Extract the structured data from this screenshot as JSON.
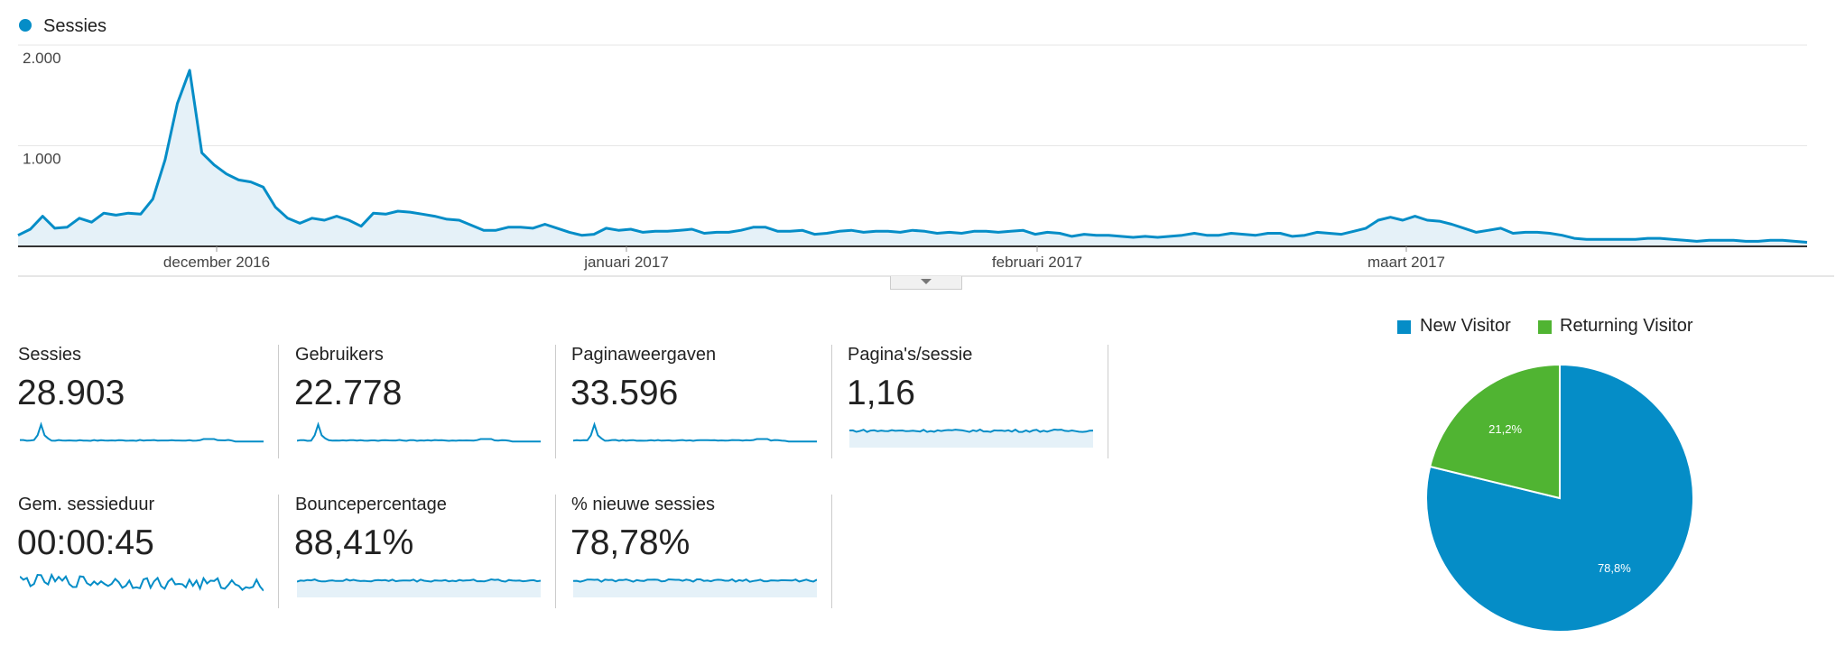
{
  "legend": {
    "series_label": "Sessies",
    "series_color": "#058dc7"
  },
  "chart_data": [
    {
      "type": "area",
      "series": [
        {
          "name": "Sessies",
          "color": "#058dc7",
          "values": [
            110,
            170,
            300,
            180,
            190,
            280,
            240,
            330,
            310,
            330,
            320,
            470,
            860,
            1420,
            1750,
            930,
            810,
            720,
            660,
            640,
            590,
            390,
            280,
            230,
            280,
            260,
            300,
            260,
            200,
            330,
            320,
            350,
            340,
            320,
            300,
            270,
            260,
            210,
            160,
            160,
            190,
            190,
            180,
            220,
            180,
            140,
            110,
            120,
            180,
            160,
            170,
            140,
            150,
            150,
            160,
            170,
            130,
            140,
            140,
            160,
            190,
            190,
            150,
            150,
            160,
            120,
            130,
            150,
            160,
            140,
            150,
            150,
            140,
            160,
            150,
            130,
            140,
            130,
            150,
            150,
            140,
            150,
            160,
            120,
            140,
            130,
            100,
            120,
            110,
            110,
            100,
            90,
            100,
            90,
            100,
            110,
            130,
            110,
            110,
            130,
            120,
            110,
            130,
            130,
            100,
            110,
            140,
            130,
            120,
            150,
            180,
            260,
            290,
            260,
            300,
            260,
            250,
            220,
            180,
            140,
            160,
            180,
            130,
            140,
            140,
            130,
            110,
            80,
            70,
            70,
            70,
            70,
            70,
            80,
            80,
            70,
            60,
            50,
            60,
            60,
            60,
            50,
            50,
            60,
            60,
            50,
            40
          ]
        }
      ],
      "x_labels": [
        "december 2016",
        "januari 2017",
        "februari 2017",
        "maart 2017"
      ],
      "y_ticks": [
        "2.000",
        "1.000"
      ],
      "ylim": [
        0,
        2000
      ],
      "grid": true
    },
    {
      "type": "pie",
      "labels": [
        "New Visitor",
        "Returning Visitor"
      ],
      "values": [
        78.8,
        21.2
      ],
      "value_labels": [
        "78,8%",
        "21,2%"
      ],
      "colors": [
        "#058dc7",
        "#50b432"
      ],
      "legend_position": "top"
    }
  ],
  "metrics": [
    {
      "label": "Sessies",
      "value": "28.903",
      "spark": "peak",
      "fill": false
    },
    {
      "label": "Gebruikers",
      "value": "22.778",
      "spark": "peak",
      "fill": false
    },
    {
      "label": "Paginaweergaven",
      "value": "33.596",
      "spark": "peak",
      "fill": false
    },
    {
      "label": "Pagina's/sessie",
      "value": "1,16",
      "spark": "flat",
      "fill": true
    },
    {
      "label": "Gem. sessieduur",
      "value": "00:00:45",
      "spark": "noisy",
      "fill": false
    },
    {
      "label": "Bouncepercentage",
      "value": "88,41%",
      "spark": "flat",
      "fill": true
    },
    {
      "label": "% nieuwe sessies",
      "value": "78,78%",
      "spark": "flat",
      "fill": true
    }
  ]
}
